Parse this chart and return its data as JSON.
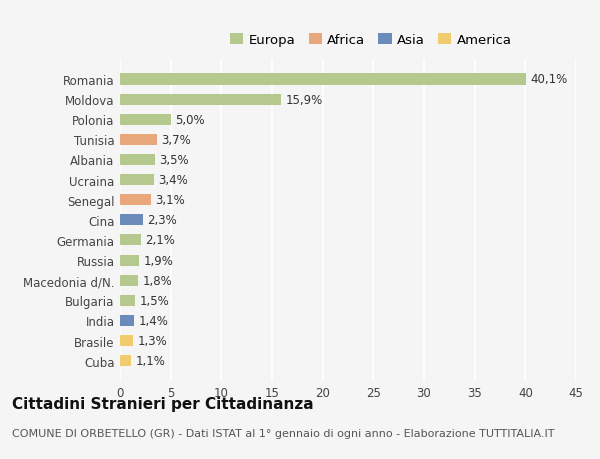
{
  "categories": [
    "Romania",
    "Moldova",
    "Polonia",
    "Tunisia",
    "Albania",
    "Ucraina",
    "Senegal",
    "Cina",
    "Germania",
    "Russia",
    "Macedonia d/N.",
    "Bulgaria",
    "India",
    "Brasile",
    "Cuba"
  ],
  "values": [
    40.1,
    15.9,
    5.0,
    3.7,
    3.5,
    3.4,
    3.1,
    2.3,
    2.1,
    1.9,
    1.8,
    1.5,
    1.4,
    1.3,
    1.1
  ],
  "labels": [
    "40,1%",
    "15,9%",
    "5,0%",
    "3,7%",
    "3,5%",
    "3,4%",
    "3,1%",
    "2,3%",
    "2,1%",
    "1,9%",
    "1,8%",
    "1,5%",
    "1,4%",
    "1,3%",
    "1,1%"
  ],
  "colors": [
    "#b5c98e",
    "#b5c98e",
    "#b5c98e",
    "#e8a87c",
    "#b5c98e",
    "#b5c98e",
    "#e8a87c",
    "#6b8cba",
    "#b5c98e",
    "#b5c98e",
    "#b5c98e",
    "#b5c98e",
    "#6b8cba",
    "#f0cc6e",
    "#f0cc6e"
  ],
  "legend_labels": [
    "Europa",
    "Africa",
    "Asia",
    "America"
  ],
  "legend_colors": [
    "#b5c98e",
    "#e8a87c",
    "#6b8cba",
    "#f0cc6e"
  ],
  "xlim": [
    0,
    45
  ],
  "xticks": [
    0,
    5,
    10,
    15,
    20,
    25,
    30,
    35,
    40,
    45
  ],
  "title": "Cittadini Stranieri per Cittadinanza",
  "subtitle": "COMUNE DI ORBETELLO (GR) - Dati ISTAT al 1° gennaio di ogni anno - Elaborazione TUTTITALIA.IT",
  "background_color": "#f5f5f5",
  "bar_height": 0.55,
  "label_fontsize": 8.5,
  "title_fontsize": 11,
  "subtitle_fontsize": 8,
  "legend_fontsize": 9.5
}
